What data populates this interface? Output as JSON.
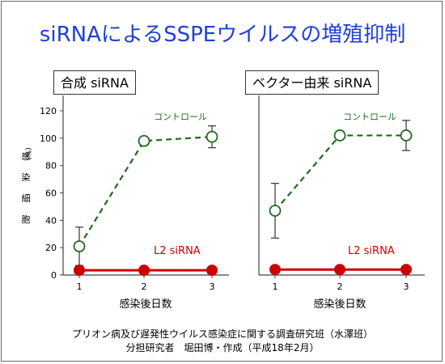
{
  "title": "siRNAによるSSPEウイルスの増殖抑制",
  "footer": {
    "line1": "プリオン病及び遅発性ウイルス感染症に関する調査研究班（水澤班）",
    "line2": "分担研究者　堀田博・作成（平成18年2月）"
  },
  "colors": {
    "title": "#1f3fd8",
    "control": "#1f6a1f",
    "l2": "#cc0000"
  },
  "chart_data": [
    {
      "type": "line",
      "panel_label": "合成 siRNA",
      "x": [
        1,
        2,
        3
      ],
      "xlabel": "感染後日数",
      "ylabel": "感 染 細 胞",
      "ylabel_unit": "(%)",
      "ylim": [
        0,
        120
      ],
      "yticks": [
        0,
        20,
        40,
        60,
        80,
        100,
        120
      ],
      "series": [
        {
          "name": "コントロール",
          "values": [
            21,
            98,
            101
          ],
          "errors": [
            14,
            1,
            8
          ],
          "style": "dashed",
          "marker": "open-circle"
        },
        {
          "name": "L2 siRNA",
          "values": [
            3.5,
            3.5,
            3.5
          ],
          "errors": [
            0,
            0,
            0
          ],
          "style": "solid",
          "marker": "filled-circle"
        }
      ]
    },
    {
      "type": "line",
      "panel_label": "ベクター由来 siRNA",
      "x": [
        1,
        2,
        3
      ],
      "xlabel": "感染後日数",
      "ylabel": "",
      "ylim": [
        0,
        120
      ],
      "yticks": [],
      "series": [
        {
          "name": "コントロール",
          "values": [
            47,
            102,
            102
          ],
          "errors": [
            20,
            1,
            11
          ],
          "style": "dashed",
          "marker": "open-circle"
        },
        {
          "name": "L2 siRNA",
          "values": [
            4,
            4,
            4
          ],
          "errors": [
            0,
            0,
            0
          ],
          "style": "solid",
          "marker": "filled-circle"
        }
      ]
    }
  ]
}
